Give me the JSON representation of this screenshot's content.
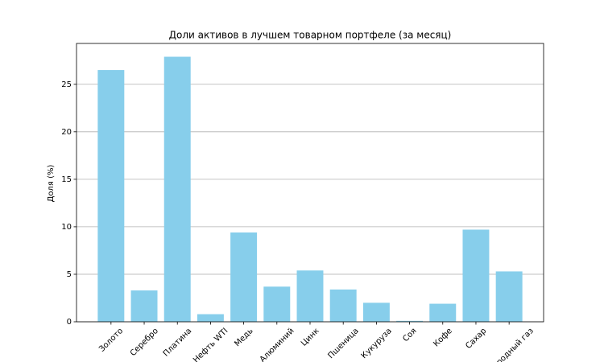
{
  "chart_data": {
    "type": "bar",
    "title": "Доли активов в лучшем товарном портфеле (за месяц)",
    "y_label": "Доля (%)",
    "categories": [
      "Золото",
      "Серебро",
      "Платина",
      "Нефть WTI",
      "Медь",
      "Алюминий",
      "Цинк",
      "Пшеница",
      "Кукуруза",
      "Соя",
      "Кофе",
      "Сахар",
      "Природный газ"
    ],
    "values": [
      26.5,
      3.3,
      27.9,
      0.8,
      9.4,
      3.7,
      5.4,
      3.4,
      2.0,
      0.1,
      1.9,
      9.7,
      5.3
    ],
    "color": "#87ceeb",
    "ylim": [
      0,
      29.3
    ],
    "yticks": [
      0,
      5,
      10,
      15,
      20,
      25
    ],
    "grid": true
  }
}
